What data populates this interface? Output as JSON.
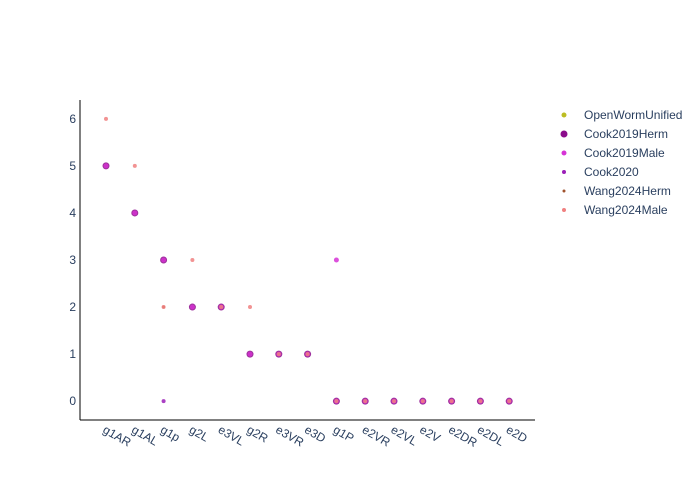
{
  "chart_data": {
    "type": "scatter",
    "categories": [
      "g1AR",
      "g1AL",
      "g1p",
      "g2L",
      "e3VL",
      "g2R",
      "e3VR",
      "e3D",
      "g1P",
      "e2VR",
      "e2VL",
      "e2V",
      "e2DR",
      "e2DL",
      "e2D"
    ],
    "ylim": [
      -0.4,
      6.4
    ],
    "yticks": [
      0,
      1,
      2,
      3,
      4,
      5,
      6
    ],
    "legend_position": "right",
    "series": [
      {
        "name": "OpenWormUnified",
        "color": "#bcbd22",
        "marker_size": 2.5,
        "points": [
          [
            "g1AR",
            5
          ],
          [
            "g1AL",
            4
          ],
          [
            "g1p",
            3
          ],
          [
            "g2L",
            2
          ],
          [
            "e3VL",
            2
          ],
          [
            "g2R",
            1
          ],
          [
            "e3VR",
            1
          ],
          [
            "e3D",
            1
          ],
          [
            "g1P",
            0
          ],
          [
            "e2VR",
            0
          ],
          [
            "e2VL",
            0
          ],
          [
            "e2V",
            0
          ],
          [
            "e2DR",
            0
          ],
          [
            "e2DL",
            0
          ],
          [
            "e2D",
            0
          ]
        ]
      },
      {
        "name": "Cook2019Herm",
        "color": "#8c0d8c",
        "marker_size": 3.5,
        "points": [
          [
            "g1AR",
            5
          ],
          [
            "g1AL",
            4
          ],
          [
            "g1p",
            3
          ],
          [
            "g2L",
            2
          ],
          [
            "e3VL",
            2
          ],
          [
            "g2R",
            1
          ],
          [
            "e3VR",
            1
          ],
          [
            "e3D",
            1
          ],
          [
            "g1P",
            0
          ],
          [
            "e2VR",
            0
          ],
          [
            "e2VL",
            0
          ],
          [
            "e2V",
            0
          ],
          [
            "e2DR",
            0
          ],
          [
            "e2DL",
            0
          ],
          [
            "e2D",
            0
          ]
        ]
      },
      {
        "name": "Cook2019Male",
        "color": "#d633d6",
        "marker_size": 2.5,
        "points": [
          [
            "g1AR",
            5
          ],
          [
            "g1AL",
            4
          ],
          [
            "g1p",
            3
          ],
          [
            "g2L",
            2
          ],
          [
            "e3VL",
            2
          ],
          [
            "g2R",
            1
          ],
          [
            "e3VR",
            1
          ],
          [
            "e3D",
            1
          ],
          [
            "g1P",
            3
          ],
          [
            "g1P",
            0
          ],
          [
            "e2VR",
            0
          ],
          [
            "e2VL",
            0
          ],
          [
            "e2V",
            0
          ],
          [
            "e2DR",
            0
          ],
          [
            "e2DL",
            0
          ],
          [
            "e2D",
            0
          ]
        ]
      },
      {
        "name": "Cook2020",
        "color": "#9b1fb8",
        "marker_size": 2,
        "points": [
          [
            "g1p",
            0
          ]
        ]
      },
      {
        "name": "Wang2024Herm",
        "color": "#a0522d",
        "marker_size": 1.5,
        "points": [
          [
            "g1p",
            2
          ]
        ]
      },
      {
        "name": "Wang2024Male",
        "color": "#f08080",
        "marker_size": 2,
        "points": [
          [
            "g1AR",
            6
          ],
          [
            "g1AL",
            5
          ],
          [
            "g1p",
            2
          ],
          [
            "g2L",
            3
          ],
          [
            "e3VL",
            2
          ],
          [
            "g2R",
            2
          ],
          [
            "e3VR",
            1
          ],
          [
            "e3D",
            1
          ],
          [
            "g1P",
            0
          ],
          [
            "e2VR",
            0
          ],
          [
            "e2VL",
            0
          ],
          [
            "e2V",
            0
          ],
          [
            "e2DR",
            0
          ],
          [
            "e2DL",
            0
          ],
          [
            "e2D",
            0
          ]
        ]
      }
    ]
  }
}
